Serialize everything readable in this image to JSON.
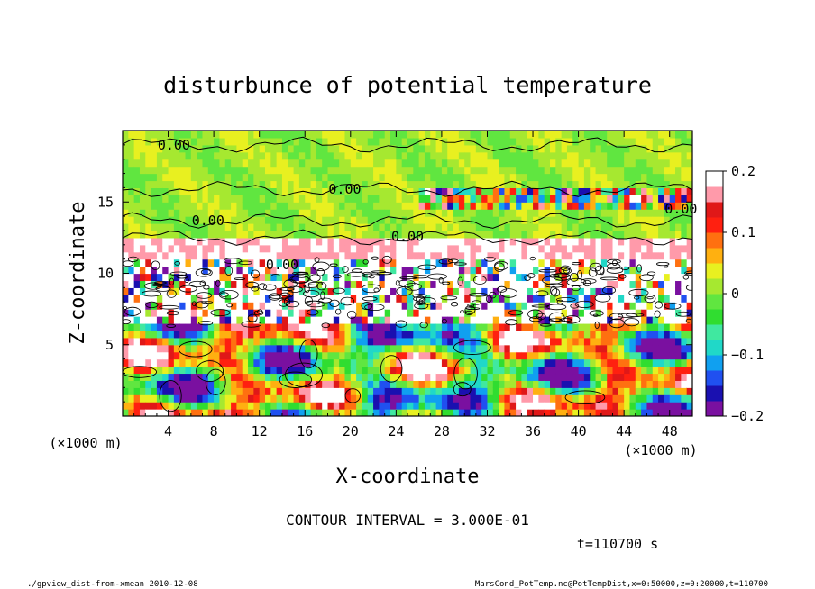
{
  "chart_data": {
    "type": "heatmap",
    "title": "disturbunce of potential temperature",
    "xlabel": "X-coordinate",
    "ylabel": "Z-coordinate",
    "x_unit": "(×1000 m)",
    "y_unit": "(×1000 m)",
    "x_ticks": [
      4,
      8,
      12,
      16,
      20,
      24,
      28,
      32,
      36,
      40,
      44,
      48
    ],
    "y_ticks": [
      5,
      10,
      15
    ],
    "xlim": [
      0,
      50
    ],
    "ylim": [
      0,
      20
    ],
    "colorbar": {
      "range": [
        -0.2,
        0.2
      ],
      "tick_values": [
        0.2,
        0.1,
        0,
        -0.1,
        -0.2
      ],
      "tick_labels": [
        "0.2",
        "0.1",
        "0",
        "−0.1",
        "−0.2"
      ],
      "colors": [
        "#7a10a0",
        "#1a10b0",
        "#2050f0",
        "#10a0f0",
        "#20d8c8",
        "#40e8a0",
        "#30dd30",
        "#60e640",
        "#a6e830",
        "#e8f020",
        "#ffb010",
        "#ff7010",
        "#ff2010",
        "#e01818",
        "#ff9aaa",
        "#ffffff"
      ]
    },
    "contour_labels": [
      {
        "text": "0.00",
        "x": 4.5,
        "z": 19.0
      },
      {
        "text": "0.00",
        "x": 19.5,
        "z": 15.9
      },
      {
        "text": "0.00",
        "x": 7.5,
        "z": 13.7
      },
      {
        "text": "0.00",
        "x": 25.0,
        "z": 12.6
      },
      {
        "text": "0.00",
        "x": 49.0,
        "z": 14.5
      },
      {
        "text": "0.00",
        "x": 14.0,
        "z": 10.6
      }
    ]
  },
  "footer": {
    "contour_interval": "CONTOUR INTERVAL = 3.000E-01",
    "time": "t=110700 s",
    "script_name": "./gpview_dist-from-xmean  2010-12-08",
    "data_source": "MarsCond_PotTemp.nc@PotTempDist,x=0:50000,z=0:20000,t=110700"
  }
}
